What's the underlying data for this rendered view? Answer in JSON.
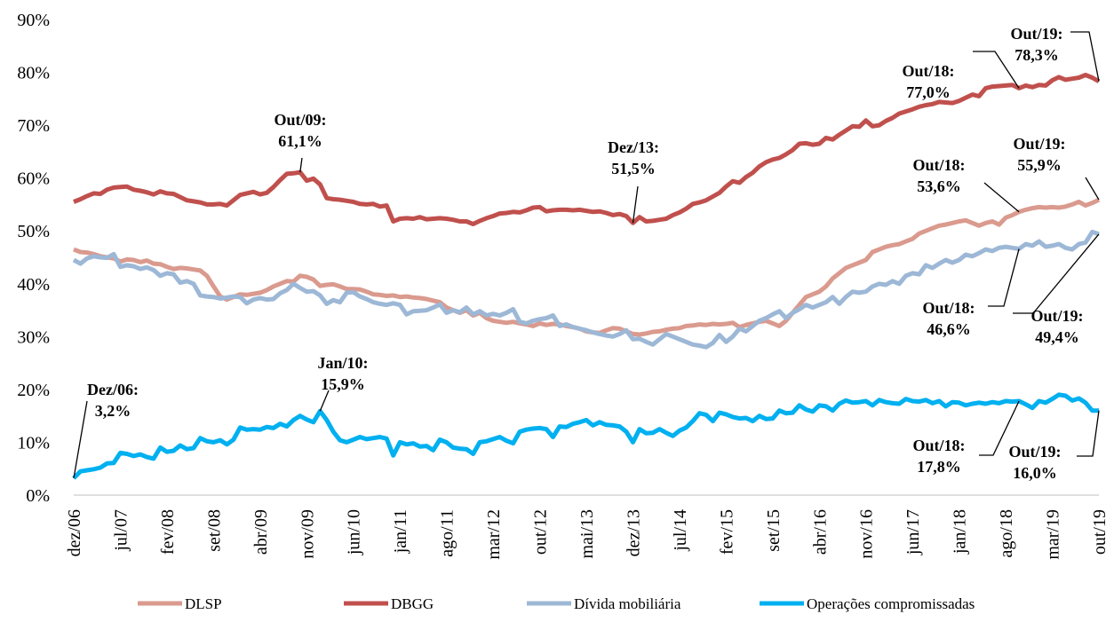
{
  "chart_data": {
    "type": "line",
    "categories": [
      "dez/06",
      null,
      null,
      null,
      null,
      null,
      null,
      "jul/07",
      null,
      null,
      null,
      null,
      null,
      null,
      "fev/08",
      null,
      null,
      null,
      null,
      null,
      null,
      "set/08",
      null,
      null,
      null,
      null,
      null,
      null,
      "abr/09",
      null,
      null,
      null,
      null,
      null,
      null,
      "nov/09",
      null,
      null,
      null,
      null,
      null,
      null,
      "jun/10",
      null,
      null,
      null,
      null,
      null,
      null,
      "jan/11",
      null,
      null,
      null,
      null,
      null,
      null,
      "ago/11",
      null,
      null,
      null,
      null,
      null,
      null,
      "mar/12",
      null,
      null,
      null,
      null,
      null,
      null,
      "out/12",
      null,
      null,
      null,
      null,
      null,
      null,
      "mai/13",
      null,
      null,
      null,
      null,
      null,
      null,
      "dez/13",
      null,
      null,
      null,
      null,
      null,
      null,
      "jul/14",
      null,
      null,
      null,
      null,
      null,
      null,
      "fev/15",
      null,
      null,
      null,
      null,
      null,
      null,
      "set/15",
      null,
      null,
      null,
      null,
      null,
      null,
      "abr/16",
      null,
      null,
      null,
      null,
      null,
      null,
      "nov/16",
      null,
      null,
      null,
      null,
      null,
      null,
      "jun/17",
      null,
      null,
      null,
      null,
      null,
      null,
      "jan/18",
      null,
      null,
      null,
      null,
      null,
      null,
      "ago/18",
      null,
      null,
      null,
      null,
      null,
      null,
      "mar/19",
      null,
      null,
      null,
      null,
      null,
      null,
      "out/19"
    ],
    "series": [
      {
        "name": "DLSP",
        "color": "#da9a8e",
        "values": [
          46.5,
          46.0,
          45.9,
          45.6,
          45.2,
          45.0,
          44.8,
          44.2,
          44.6,
          44.5,
          44.1,
          44.4,
          43.8,
          43.7,
          43.2,
          42.8,
          43.0,
          42.9,
          42.7,
          42.5,
          41.5,
          39.5,
          37.6,
          37.0,
          37.5,
          38.0,
          37.9,
          38.1,
          38.3,
          38.8,
          39.5,
          40.0,
          40.5,
          40.4,
          41.5,
          41.3,
          40.8,
          39.6,
          39.8,
          39.9,
          39.5,
          39.0,
          39.0,
          38.9,
          38.5,
          38.0,
          37.9,
          37.7,
          37.8,
          37.5,
          37.6,
          37.4,
          37.3,
          37.1,
          36.8,
          36.5,
          35.5,
          35.0,
          34.5,
          35.0,
          34.0,
          34.5,
          33.5,
          33.0,
          32.8,
          32.6,
          32.8,
          32.5,
          32.3,
          32.0,
          32.5,
          32.2,
          32.4,
          32.3,
          32.0,
          31.8,
          31.5,
          31.0,
          30.8,
          30.7,
          31.2,
          31.6,
          31.5,
          31.0,
          30.5,
          30.4,
          30.6,
          30.9,
          31.0,
          31.3,
          31.5,
          31.6,
          32.0,
          32.1,
          32.3,
          32.2,
          32.4,
          32.3,
          32.4,
          32.6,
          31.8,
          32.2,
          32.5,
          32.8,
          33.0,
          32.5,
          32.0,
          33.0,
          34.5,
          36.0,
          37.5,
          38.0,
          38.5,
          39.5,
          41.0,
          42.0,
          43.0,
          43.5,
          44.0,
          44.5,
          46.0,
          46.5,
          47.0,
          47.3,
          47.5,
          48.0,
          48.5,
          49.5,
          50.0,
          50.5,
          51.0,
          51.2,
          51.5,
          51.8,
          52.0,
          51.5,
          51.0,
          51.5,
          51.8,
          51.2,
          52.5,
          53.0,
          53.6,
          54.0,
          54.3,
          54.5,
          54.4,
          54.5,
          54.4,
          54.6,
          55.0,
          55.5,
          54.8,
          55.3,
          55.9
        ]
      },
      {
        "name": "DBGG",
        "color": "#c0504d",
        "values": [
          55.5,
          56.0,
          56.6,
          57.1,
          57.0,
          57.8,
          58.2,
          58.3,
          58.4,
          57.8,
          57.6,
          57.3,
          56.9,
          57.5,
          57.1,
          57.0,
          56.4,
          55.8,
          55.6,
          55.4,
          55.0,
          55.0,
          55.1,
          54.8,
          55.8,
          56.8,
          57.1,
          57.4,
          56.9,
          57.2,
          58.3,
          59.6,
          60.8,
          60.9,
          61.1,
          59.5,
          59.9,
          58.8,
          56.2,
          56.0,
          55.9,
          55.7,
          55.5,
          55.1,
          55.0,
          55.1,
          54.6,
          54.8,
          51.8,
          52.3,
          52.4,
          52.3,
          52.6,
          52.2,
          52.3,
          52.4,
          52.3,
          52.1,
          51.8,
          51.8,
          51.3,
          51.9,
          52.4,
          52.8,
          53.3,
          53.4,
          53.6,
          53.5,
          53.9,
          54.4,
          54.5,
          53.7,
          53.9,
          54.0,
          54.0,
          53.9,
          54.0,
          53.8,
          53.6,
          53.7,
          53.4,
          53.0,
          53.2,
          52.8,
          51.5,
          52.6,
          51.8,
          51.9,
          52.1,
          52.3,
          53.0,
          53.5,
          54.2,
          55.1,
          55.4,
          55.8,
          56.5,
          57.2,
          58.4,
          59.4,
          59.1,
          60.2,
          61.0,
          62.2,
          63.0,
          63.5,
          63.8,
          64.5,
          65.3,
          66.5,
          66.6,
          66.3,
          66.5,
          67.6,
          67.3,
          68.2,
          69.0,
          69.8,
          69.7,
          70.9,
          69.8,
          70.0,
          70.8,
          71.4,
          72.2,
          72.6,
          73.0,
          73.5,
          73.8,
          74.0,
          74.4,
          74.3,
          74.2,
          74.6,
          75.2,
          75.8,
          75.5,
          77.0,
          77.3,
          77.4,
          77.5,
          77.6,
          77.0,
          77.5,
          77.2,
          77.6,
          77.5,
          78.5,
          79.1,
          78.6,
          78.8,
          79.0,
          79.5,
          79.0,
          78.3
        ]
      },
      {
        "name": "Dívida mobiliária",
        "color": "#9db8d6",
        "values": [
          44.5,
          43.8,
          44.8,
          45.2,
          45.0,
          44.9,
          45.6,
          43.2,
          43.5,
          43.3,
          42.8,
          43.1,
          42.6,
          41.5,
          42.0,
          41.8,
          40.2,
          40.5,
          40.0,
          37.8,
          37.6,
          37.5,
          37.2,
          37.4,
          37.6,
          37.5,
          36.3,
          37.0,
          37.3,
          37.0,
          37.1,
          38.2,
          38.8,
          40.0,
          39.2,
          38.5,
          38.6,
          37.8,
          36.2,
          36.9,
          36.5,
          38.3,
          38.4,
          37.6,
          37.1,
          36.5,
          36.2,
          36.0,
          36.3,
          36.0,
          34.2,
          34.8,
          34.9,
          35.0,
          35.5,
          36.1,
          34.5,
          35.0,
          34.6,
          35.5,
          34.2,
          34.8,
          34.0,
          34.3,
          34.0,
          34.5,
          35.2,
          32.8,
          32.5,
          33.0,
          33.3,
          33.5,
          34.0,
          32.0,
          32.3,
          31.8,
          31.5,
          31.2,
          30.8,
          30.5,
          30.2,
          30.0,
          30.5,
          31.2,
          29.5,
          29.6,
          29.0,
          28.5,
          29.5,
          30.5,
          30.0,
          29.5,
          29.0,
          28.5,
          28.3,
          28.0,
          28.8,
          30.3,
          29.0,
          30.0,
          31.5,
          31.0,
          32.0,
          33.0,
          33.5,
          34.2,
          34.8,
          33.5,
          34.5,
          35.2,
          36.0,
          35.5,
          36.0,
          36.5,
          37.5,
          36.2,
          37.5,
          38.5,
          38.3,
          38.5,
          39.5,
          40.0,
          39.8,
          40.5,
          40.0,
          41.5,
          42.0,
          41.8,
          43.5,
          43.0,
          43.8,
          44.5,
          44.0,
          44.5,
          45.5,
          45.2,
          45.8,
          46.5,
          46.2,
          46.8,
          47.0,
          46.8,
          46.6,
          47.5,
          47.2,
          48.0,
          47.0,
          47.2,
          47.5,
          46.8,
          46.5,
          47.5,
          47.8,
          49.8,
          49.4
        ]
      },
      {
        "name": "Operações compromissadas",
        "color": "#00b0f0",
        "values": [
          3.2,
          4.5,
          4.7,
          4.9,
          5.2,
          6.0,
          6.1,
          8.0,
          7.8,
          7.4,
          7.7,
          7.2,
          6.9,
          9.0,
          8.2,
          8.4,
          9.4,
          8.7,
          8.9,
          10.8,
          10.2,
          10.0,
          10.4,
          9.6,
          10.5,
          12.8,
          12.4,
          12.5,
          12.4,
          12.9,
          12.7,
          13.5,
          13.0,
          14.2,
          15.0,
          14.3,
          13.8,
          15.9,
          14.2,
          12.0,
          10.4,
          10.0,
          10.5,
          11.0,
          10.6,
          10.8,
          11.0,
          10.7,
          7.5,
          10.0,
          9.6,
          9.8,
          9.2,
          9.3,
          8.5,
          10.5,
          10.0,
          9.0,
          8.8,
          8.7,
          7.8,
          10.0,
          10.2,
          10.6,
          11.0,
          10.3,
          9.8,
          12.0,
          12.4,
          12.6,
          12.7,
          12.5,
          11.0,
          13.0,
          12.9,
          13.5,
          13.8,
          14.2,
          13.2,
          13.8,
          13.3,
          13.2,
          13.0,
          12.0,
          10.0,
          12.5,
          11.7,
          11.8,
          12.5,
          11.8,
          11.2,
          12.2,
          12.8,
          14.0,
          15.5,
          15.2,
          14.0,
          15.6,
          15.3,
          14.8,
          14.5,
          14.6,
          14.0,
          15.0,
          14.4,
          14.5,
          16.0,
          15.5,
          15.6,
          17.0,
          16.2,
          15.8,
          17.0,
          16.8,
          16.0,
          17.3,
          17.9,
          17.5,
          17.6,
          17.8,
          17.0,
          18.0,
          17.6,
          17.4,
          17.3,
          18.2,
          17.8,
          17.7,
          18.0,
          17.4,
          17.8,
          16.8,
          17.6,
          17.5,
          17.0,
          17.3,
          17.5,
          17.3,
          17.6,
          17.4,
          17.8,
          17.7,
          17.8,
          17.2,
          16.5,
          17.8,
          17.5,
          18.2,
          19.0,
          18.8,
          17.9,
          18.3,
          17.5,
          16.0,
          16.0
        ]
      }
    ],
    "ylim": [
      0,
      90
    ],
    "yticks": [
      {
        "value": 0,
        "label": "0%"
      },
      {
        "value": 10,
        "label": "10%"
      },
      {
        "value": 20,
        "label": "20%"
      },
      {
        "value": 30,
        "label": "30%"
      },
      {
        "value": 40,
        "label": "40%"
      },
      {
        "value": 50,
        "label": "50%"
      },
      {
        "value": 60,
        "label": "60%"
      },
      {
        "value": 70,
        "label": "70%"
      },
      {
        "value": 80,
        "label": "80%"
      },
      {
        "value": 90,
        "label": "90%"
      }
    ],
    "grid": false,
    "legend": "bottom",
    "annotations": [
      {
        "text": [
          "Dez/06:",
          "3,2%"
        ]
      },
      {
        "text": [
          "Jan/10:",
          "15,9%"
        ]
      },
      {
        "text": [
          "Out/09:",
          "61,1%"
        ]
      },
      {
        "text": [
          "Dez/13:",
          "51,5%"
        ]
      },
      {
        "text": [
          "Out/18:",
          "77,0%"
        ]
      },
      {
        "text": [
          "Out/19:",
          "78,3%"
        ]
      },
      {
        "text": [
          "Out/18:",
          "53,6%"
        ]
      },
      {
        "text": [
          "Out/19:",
          "55,9%"
        ]
      },
      {
        "text": [
          "Out/18:",
          "46,6%"
        ]
      },
      {
        "text": [
          "Out/19:",
          "49,4%"
        ]
      },
      {
        "text": [
          "Out/18:",
          "17,8%"
        ]
      },
      {
        "text": [
          "Out/19:",
          "16,0%"
        ]
      }
    ]
  }
}
